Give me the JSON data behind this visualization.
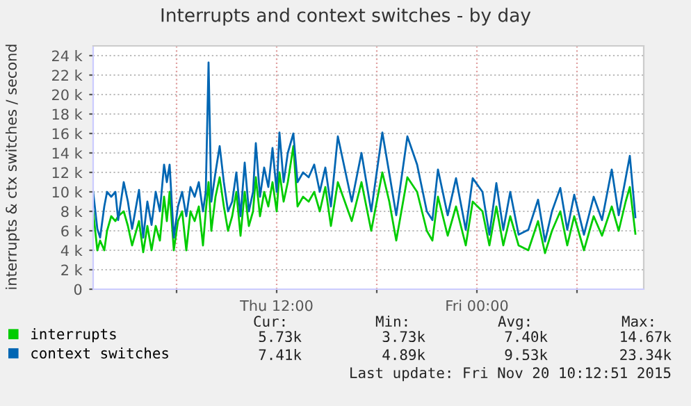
{
  "chart_data": {
    "type": "line",
    "title": "Interrupts and context switches - by day",
    "ylabel": "interrupts & ctx switches / second",
    "x": [
      "2015-11-19T01:00",
      "2015-11-19T01:15",
      "2015-11-19T01:25",
      "2015-11-19T01:40",
      "2015-11-19T01:50",
      "2015-11-19T02:05",
      "2015-11-19T02:20",
      "2015-11-19T02:30",
      "2015-11-19T02:50",
      "2015-11-19T03:05",
      "2015-11-19T03:20",
      "2015-11-19T03:45",
      "2015-11-19T04:00",
      "2015-11-19T04:15",
      "2015-11-19T04:30",
      "2015-11-19T04:45",
      "2015-11-19T05:00",
      "2015-11-19T05:15",
      "2015-11-19T05:25",
      "2015-11-19T05:35",
      "2015-11-19T05:50",
      "2015-11-19T06:05",
      "2015-11-19T06:20",
      "2015-11-19T06:35",
      "2015-11-19T06:50",
      "2015-11-19T07:05",
      "2015-11-19T07:20",
      "2015-11-19T07:35",
      "2015-11-19T07:45",
      "2015-11-19T07:55",
      "2015-11-19T08:05",
      "2015-11-19T08:20",
      "2015-11-19T08:35",
      "2015-11-19T08:50",
      "2015-11-19T09:05",
      "2015-11-19T09:20",
      "2015-11-19T09:35",
      "2015-11-19T09:50",
      "2015-11-19T10:05",
      "2015-11-19T10:20",
      "2015-11-19T10:35",
      "2015-11-19T10:45",
      "2015-11-19T11:00",
      "2015-11-19T11:15",
      "2015-11-19T11:30",
      "2015-11-19T11:45",
      "2015-11-19T12:00",
      "2015-11-19T12:10",
      "2015-11-19T12:25",
      "2015-11-19T12:40",
      "2015-11-19T13:00",
      "2015-11-19T13:15",
      "2015-11-19T13:35",
      "2015-11-19T13:55",
      "2015-11-19T14:15",
      "2015-11-19T14:35",
      "2015-11-19T14:55",
      "2015-11-19T15:15",
      "2015-11-19T15:40",
      "2015-11-19T16:30",
      "2015-11-19T17:05",
      "2015-11-19T17:40",
      "2015-11-19T18:20",
      "2015-11-19T18:45",
      "2015-11-19T19:10",
      "2015-11-19T19:50",
      "2015-11-19T20:25",
      "2015-11-19T21:00",
      "2015-11-19T21:20",
      "2015-11-19T21:40",
      "2015-11-19T22:15",
      "2015-11-19T22:45",
      "2015-11-19T23:20",
      "2015-11-19T23:45",
      "2015-11-20T00:20",
      "2015-11-20T00:45",
      "2015-11-20T01:10",
      "2015-11-20T01:35",
      "2015-11-20T02:00",
      "2015-11-20T02:30",
      "2015-11-20T03:05",
      "2015-11-20T03:40",
      "2015-11-20T04:05",
      "2015-11-20T04:30",
      "2015-11-20T05:00",
      "2015-11-20T05:25",
      "2015-11-20T05:50",
      "2015-11-20T06:25",
      "2015-11-20T07:00",
      "2015-11-20T07:30",
      "2015-11-20T08:05",
      "2015-11-20T08:30",
      "2015-11-20T08:55",
      "2015-11-20T09:10",
      "2015-11-20T09:30"
    ],
    "series": [
      {
        "name": "interrupts",
        "color": "#00cc00",
        "values": [
          8.0,
          4.0,
          5.0,
          4.0,
          6.0,
          7.5,
          7.0,
          7.5,
          8.0,
          6.5,
          4.5,
          7.0,
          3.8,
          6.5,
          4.0,
          6.5,
          5.0,
          9.5,
          7.0,
          10.0,
          4.0,
          7.0,
          8.0,
          4.0,
          8.0,
          7.0,
          8.5,
          4.5,
          8.0,
          11.0,
          6.0,
          9.5,
          11.5,
          8.5,
          6.0,
          7.5,
          10.0,
          5.5,
          10.0,
          6.5,
          8.0,
          11.5,
          7.5,
          10.0,
          8.5,
          11.0,
          8.0,
          12.0,
          9.0,
          11.0,
          14.7,
          8.5,
          9.5,
          9.0,
          10.0,
          8.0,
          10.5,
          6.5,
          11.0,
          7.0,
          11.0,
          6.0,
          12.0,
          9.0,
          5.0,
          11.5,
          10.0,
          6.0,
          5.0,
          9.5,
          5.5,
          8.5,
          4.5,
          9.0,
          8.0,
          4.5,
          8.5,
          4.5,
          7.5,
          4.5,
          4.0,
          7.0,
          3.7,
          6.0,
          8.0,
          4.5,
          7.5,
          4.0,
          7.5,
          5.5,
          8.5,
          6.0,
          9.0,
          10.5,
          5.7
        ]
      },
      {
        "name": "context switches",
        "color": "#0066b3",
        "values": [
          10.0,
          6.2,
          5.3,
          8.5,
          10.0,
          9.5,
          10.0,
          7.1,
          11.0,
          9.0,
          6.2,
          10.2,
          5.3,
          9.0,
          6.6,
          10.0,
          8.0,
          12.8,
          11.0,
          12.8,
          5.3,
          8.5,
          10.0,
          7.5,
          10.5,
          9.5,
          11.0,
          8.0,
          10.0,
          23.3,
          9.0,
          12.0,
          14.7,
          11.0,
          8.0,
          9.0,
          12.0,
          7.5,
          13.0,
          8.0,
          10.0,
          15.0,
          9.5,
          12.5,
          10.5,
          14.5,
          10.0,
          16.1,
          11.0,
          14.0,
          16.0,
          11.0,
          12.0,
          11.5,
          12.8,
          10.0,
          12.5,
          8.5,
          15.7,
          9.0,
          14.0,
          8.0,
          16.1,
          11.9,
          7.6,
          15.7,
          12.8,
          8.0,
          7.1,
          12.3,
          7.6,
          11.4,
          6.1,
          11.4,
          10.0,
          5.6,
          10.9,
          6.1,
          10.0,
          5.6,
          6.1,
          9.2,
          4.9,
          8.0,
          10.4,
          6.1,
          9.7,
          5.6,
          9.5,
          7.1,
          12.3,
          7.6,
          11.4,
          13.7,
          7.4
        ]
      }
    ],
    "xlim": [
      "2015-11-19T01:00",
      "2015-11-20T10:00"
    ],
    "xticks": [
      {
        "value": "2015-11-19T06:00",
        "label": null
      },
      {
        "value": "2015-11-19T12:00",
        "label": "Thu 12:00"
      },
      {
        "value": "2015-11-19T18:00",
        "label": null
      },
      {
        "value": "2015-11-20T00:00",
        "label": "Fri 00:00"
      },
      {
        "value": "2015-11-20T06:00",
        "label": null
      }
    ],
    "ylim": [
      0,
      25
    ],
    "yticks": [
      {
        "value": 0,
        "label": "0"
      },
      {
        "value": 2,
        "label": "2 k"
      },
      {
        "value": 4,
        "label": "4 k"
      },
      {
        "value": 6,
        "label": "6 k"
      },
      {
        "value": 8,
        "label": "8 k"
      },
      {
        "value": 10,
        "label": "10 k"
      },
      {
        "value": 12,
        "label": "12 k"
      },
      {
        "value": 14,
        "label": "14 k"
      },
      {
        "value": 16,
        "label": "16 k"
      },
      {
        "value": 18,
        "label": "18 k"
      },
      {
        "value": 20,
        "label": "20 k"
      },
      {
        "value": 22,
        "label": "22 k"
      },
      {
        "value": 24,
        "label": "24 k"
      }
    ],
    "grid": true,
    "legend": "bottom left",
    "marker": "none",
    "line_style": "solid",
    "annotations": [
      "Cur:",
      "Min:",
      "Avg:",
      "Max:",
      "5.73k",
      "3.73k",
      "7.40k",
      "14.67k",
      "7.41k",
      "4.89k",
      "9.53k",
      "23.34k",
      "Last update: Fri Nov 20 10:12:51 2015"
    ]
  }
}
